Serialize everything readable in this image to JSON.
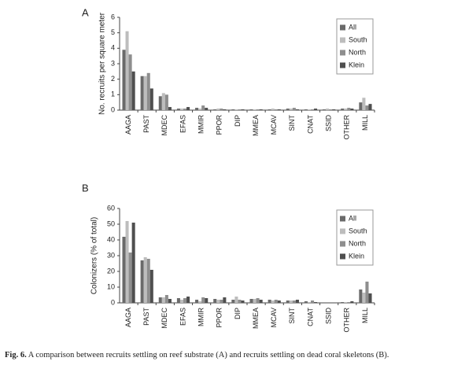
{
  "chart_data": [
    {
      "type": "bar",
      "title": "A",
      "y_label": "No. recruits per square meter",
      "categories": [
        "AAGA",
        "PAST",
        "MDEC",
        "EFAS",
        "MMIR",
        "PPOR",
        "DIP",
        "MMEA",
        "MCAV",
        "SINT",
        "CNAT",
        "SSID",
        "OTHER",
        "MILL"
      ],
      "series": [
        {
          "name": "All",
          "color": "#6a6a6a",
          "values": [
            3.9,
            2.2,
            0.9,
            0.1,
            0.15,
            0.05,
            0.05,
            0.05,
            0.05,
            0.1,
            0.05,
            0.05,
            0.1,
            0.5
          ]
        },
        {
          "name": "South",
          "color": "#bdbdbd",
          "values": [
            5.1,
            2.2,
            1.1,
            0.1,
            0.1,
            0.1,
            0.05,
            0.05,
            0.1,
            0.1,
            0.05,
            0.1,
            0.1,
            0.8
          ]
        },
        {
          "name": "North",
          "color": "#8e8e8e",
          "values": [
            3.6,
            2.4,
            1.0,
            0.1,
            0.3,
            0.1,
            0.05,
            0.05,
            0.05,
            0.15,
            0.05,
            0.05,
            0.15,
            0.3
          ]
        },
        {
          "name": "Klein",
          "color": "#4f4f4f",
          "values": [
            2.5,
            1.4,
            0.2,
            0.2,
            0.15,
            0.05,
            0.05,
            0.05,
            0.05,
            0.05,
            0.1,
            0.05,
            0.1,
            0.4
          ]
        }
      ],
      "ylim": [
        0,
        6
      ],
      "yticks": [
        0,
        1,
        2,
        3,
        4,
        5,
        6
      ],
      "grid": false,
      "legend": "upper right"
    },
    {
      "type": "bar",
      "title": "B",
      "y_label": "Colonizers (% of total)",
      "categories": [
        "AAGA",
        "PAST",
        "MDEC",
        "EFAS",
        "MMIR",
        "PPOR",
        "DIP",
        "MMEA",
        "MCAV",
        "SINT",
        "CNAT",
        "SSID",
        "OTHER",
        "MILL"
      ],
      "series": [
        {
          "name": "All",
          "color": "#6a6a6a",
          "values": [
            42,
            27,
            3.5,
            3,
            2,
            2.5,
            2,
            2.5,
            2,
            1.5,
            1,
            0,
            0.5,
            8.5
          ]
        },
        {
          "name": "South",
          "color": "#bdbdbd",
          "values": [
            52,
            29,
            3.5,
            2,
            1,
            2,
            4,
            2.5,
            1.5,
            1.5,
            0.5,
            0,
            0.5,
            6.5
          ]
        },
        {
          "name": "North",
          "color": "#8e8e8e",
          "values": [
            32,
            28,
            5,
            3,
            3.5,
            2,
            2,
            3,
            2,
            1.5,
            1.5,
            0,
            0.5,
            13.5
          ]
        },
        {
          "name": "Klein",
          "color": "#4f4f4f",
          "values": [
            51,
            21,
            2.5,
            4,
            3,
            3.5,
            1.5,
            2,
            1.5,
            2,
            0.5,
            0,
            1,
            6
          ]
        }
      ],
      "ylim": [
        0,
        60
      ],
      "yticks": [
        0,
        10,
        20,
        30,
        40,
        50,
        60
      ],
      "grid": false,
      "legend": "upper right"
    }
  ],
  "caption": {
    "label": "Fig. 6.",
    "text": "A comparison between recruits settling on reef substrate (A) and recruits settling on dead coral skeletons (B)."
  }
}
